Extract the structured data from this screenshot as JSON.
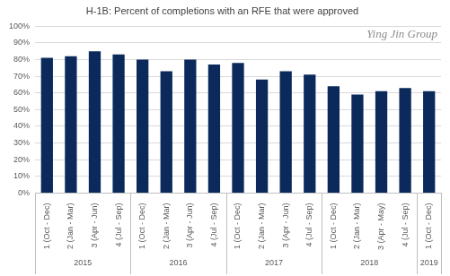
{
  "chart_data": {
    "type": "bar",
    "title": "H-1B: Percent of completions with an RFE that were approved",
    "categories": [
      "1 (Oct - Dec)",
      "2 (Jan - Mar)",
      "3 (Apr - Jun)",
      "4 (Jul - Sep)",
      "1 (Oct - Dec)",
      "2 (Jan - Mar)",
      "3 (Apr - Jun)",
      "4 (Jul - Sep)",
      "1 (Oct - Dec)",
      "2 (Jan - Mar)",
      "3 (Apr - Jun)",
      "4 (Jul - Sep)",
      "1 (Oct - Dec)",
      "2 (Jan - Mar)",
      "3 (Apr - May)",
      "4 (Jul - Sep)",
      "1 (Oct - Dec)"
    ],
    "groups": [
      {
        "label": "2015",
        "size": 4
      },
      {
        "label": "2016",
        "size": 4
      },
      {
        "label": "2017",
        "size": 4
      },
      {
        "label": "2018",
        "size": 4
      },
      {
        "label": "2019",
        "size": 1
      }
    ],
    "values": [
      81,
      82,
      85,
      83,
      80,
      73,
      80,
      77,
      78,
      68,
      73,
      71,
      64,
      59,
      61,
      63,
      61
    ],
    "color": "#0b2a5b",
    "ylim": [
      0,
      100
    ],
    "yticks": [
      {
        "value": 0,
        "label": "0%"
      },
      {
        "value": 10,
        "label": "10%"
      },
      {
        "value": 20,
        "label": "20%"
      },
      {
        "value": 30,
        "label": "30%"
      },
      {
        "value": 40,
        "label": "40%"
      },
      {
        "value": 50,
        "label": "50%"
      },
      {
        "value": 60,
        "label": "60%"
      },
      {
        "value": 70,
        "label": "70%"
      },
      {
        "value": 80,
        "label": "80%"
      },
      {
        "value": 90,
        "label": "90%"
      },
      {
        "value": 100,
        "label": "100%"
      }
    ],
    "grid": true,
    "annotation": "Ying Jin Group"
  }
}
